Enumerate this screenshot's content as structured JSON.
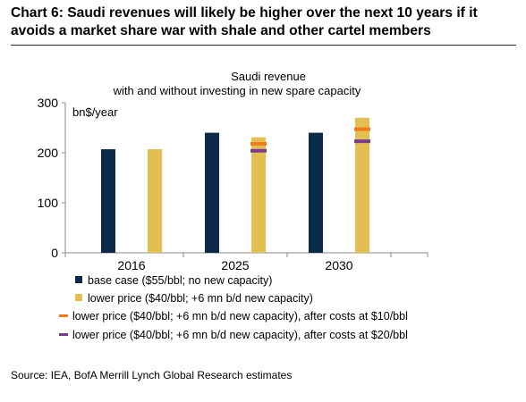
{
  "header": {
    "title": "Chart 6: Saudi revenues will likely be higher over the next 10 years if it avoids a market share war with shale and other cartel members"
  },
  "footer": {
    "source": "Source: IEA, BofA Merrill Lynch Global Research estimates"
  },
  "colors": {
    "base_bar": "#0b2a4a",
    "lower_bar": "#e3bf52",
    "marker_10": "#f07a1c",
    "marker_20": "#7a3d8e",
    "axis": "#888888"
  },
  "chart_data": {
    "type": "bar",
    "title": "Saudi revenue",
    "subtitle": "with and without investing in new spare capacity",
    "unit_label": "bn$/year",
    "categories": [
      "2016",
      "2025",
      "2030"
    ],
    "ylim": [
      0,
      300
    ],
    "yticks": [
      0,
      100,
      200,
      300
    ],
    "grid": false,
    "legend_position": "bottom",
    "series": [
      {
        "name": "base case ($55/bbl; no new capacity)",
        "kind": "bar",
        "color": "#0b2a4a",
        "values": [
          207,
          240,
          240
        ]
      },
      {
        "name": "lower price ($40/bbl; +6 mn b/d new capacity)",
        "kind": "bar",
        "color": "#e3bf52",
        "values": [
          207,
          231,
          270
        ]
      },
      {
        "name": "lower price ($40/bbl; +6 mn b/d new capacity), after costs at $10/bbl",
        "kind": "marker",
        "color": "#f07a1c",
        "values": [
          null,
          218,
          247
        ]
      },
      {
        "name": "lower price ($40/bbl; +6 mn b/d new capacity), after costs at $20/bbl",
        "kind": "marker",
        "color": "#7a3d8e",
        "values": [
          null,
          204,
          223
        ]
      }
    ]
  }
}
